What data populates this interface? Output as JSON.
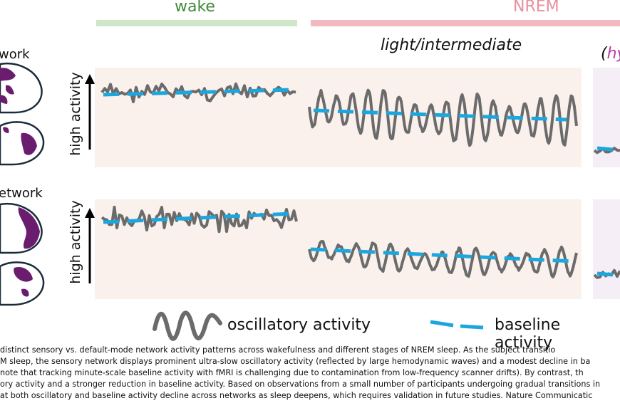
{
  "colors": {
    "wake_bar": "#cfe6c8",
    "nrem_bar": "#f2b9c0",
    "wake_text": "#3f8a3a",
    "nrem_text": "#e98f9c",
    "hyp_text": "#b23fa6",
    "panel_bg": "#fbf1ec",
    "panel_bg2": "#f6eef6",
    "oscillation": "#6b6b6b",
    "baseline": "#1aa7e0",
    "brain_fill": "#6a1c6e"
  },
  "stages": {
    "wake": "wake",
    "nrem": "NREM",
    "light": "light/intermediate",
    "hyp_prefix": "(hy",
    "hyp_color_part": "hy"
  },
  "networks": {
    "top": "work",
    "bottom": "etwork"
  },
  "axis": {
    "ylabel_top": "high activity",
    "ylabel_bottom": "high activity"
  },
  "legend": {
    "oscillatory": "oscillatory activity",
    "baseline": "baseline activity"
  },
  "caption": [
    "distinct sensory vs. default-mode network activity patterns across wakefulness and different stages of NREM sleep. As the subject transitio",
    "M sleep, the sensory network displays prominent ultra-slow oscillatory activity (reflected by large hemodynamic waves) and a modest decline in ba",
    "note that tracking minute-scale baseline activity with fMRI is challenging due to contamination from low-frequency scanner drifts). By contrast, th",
    "ory activity and a stronger reduction in baseline activity. Based on observations from a small number of participants undergoing gradual transitions in",
    "at both oscillatory and baseline activity decline across networks as sleep deepens, which requires validation in future studies. Nature Communicatic"
  ]
}
